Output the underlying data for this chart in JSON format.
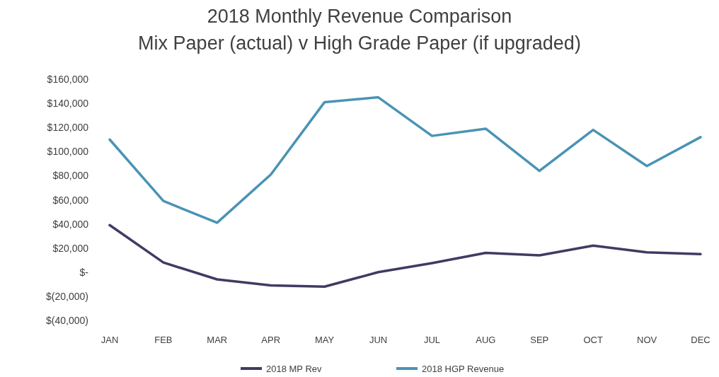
{
  "chart_data": {
    "type": "line",
    "title": "2018 Monthly Revenue Comparison\nMix Paper (actual) v High Grade Paper (if upgraded)",
    "categories": [
      "JAN",
      "FEB",
      "MAR",
      "APR",
      "MAY",
      "JUN",
      "JUL",
      "AUG",
      "SEP",
      "OCT",
      "NOV",
      "DEC"
    ],
    "series": [
      {
        "name": "2018 MP Rev",
        "color": "#3f3b63",
        "values": [
          39000,
          8000,
          -6000,
          -11000,
          -12000,
          0,
          7500,
          16000,
          14000,
          22000,
          16500,
          15000
        ]
      },
      {
        "name": "2018 HGP Revenue",
        "color": "#4a93b5",
        "values": [
          110000,
          59000,
          41000,
          81000,
          141000,
          145000,
          113000,
          119000,
          84000,
          118000,
          88000,
          112000
        ]
      }
    ],
    "ylim": [
      -40000,
      160000
    ],
    "yticks": [
      {
        "value": -40000,
        "label": "$(40,000)"
      },
      {
        "value": -20000,
        "label": "$(20,000)"
      },
      {
        "value": 0,
        "label": "$-"
      },
      {
        "value": 20000,
        "label": "$20,000"
      },
      {
        "value": 40000,
        "label": "$40,000"
      },
      {
        "value": 60000,
        "label": "$60,000"
      },
      {
        "value": 80000,
        "label": "$80,000"
      },
      {
        "value": 100000,
        "label": "$100,000"
      },
      {
        "value": 120000,
        "label": "$120,000"
      },
      {
        "value": 140000,
        "label": "$140,000"
      },
      {
        "value": 160000,
        "label": "$160,000"
      }
    ],
    "grid": false,
    "legend": "bottom",
    "marker": "none",
    "line_style": "solid"
  }
}
